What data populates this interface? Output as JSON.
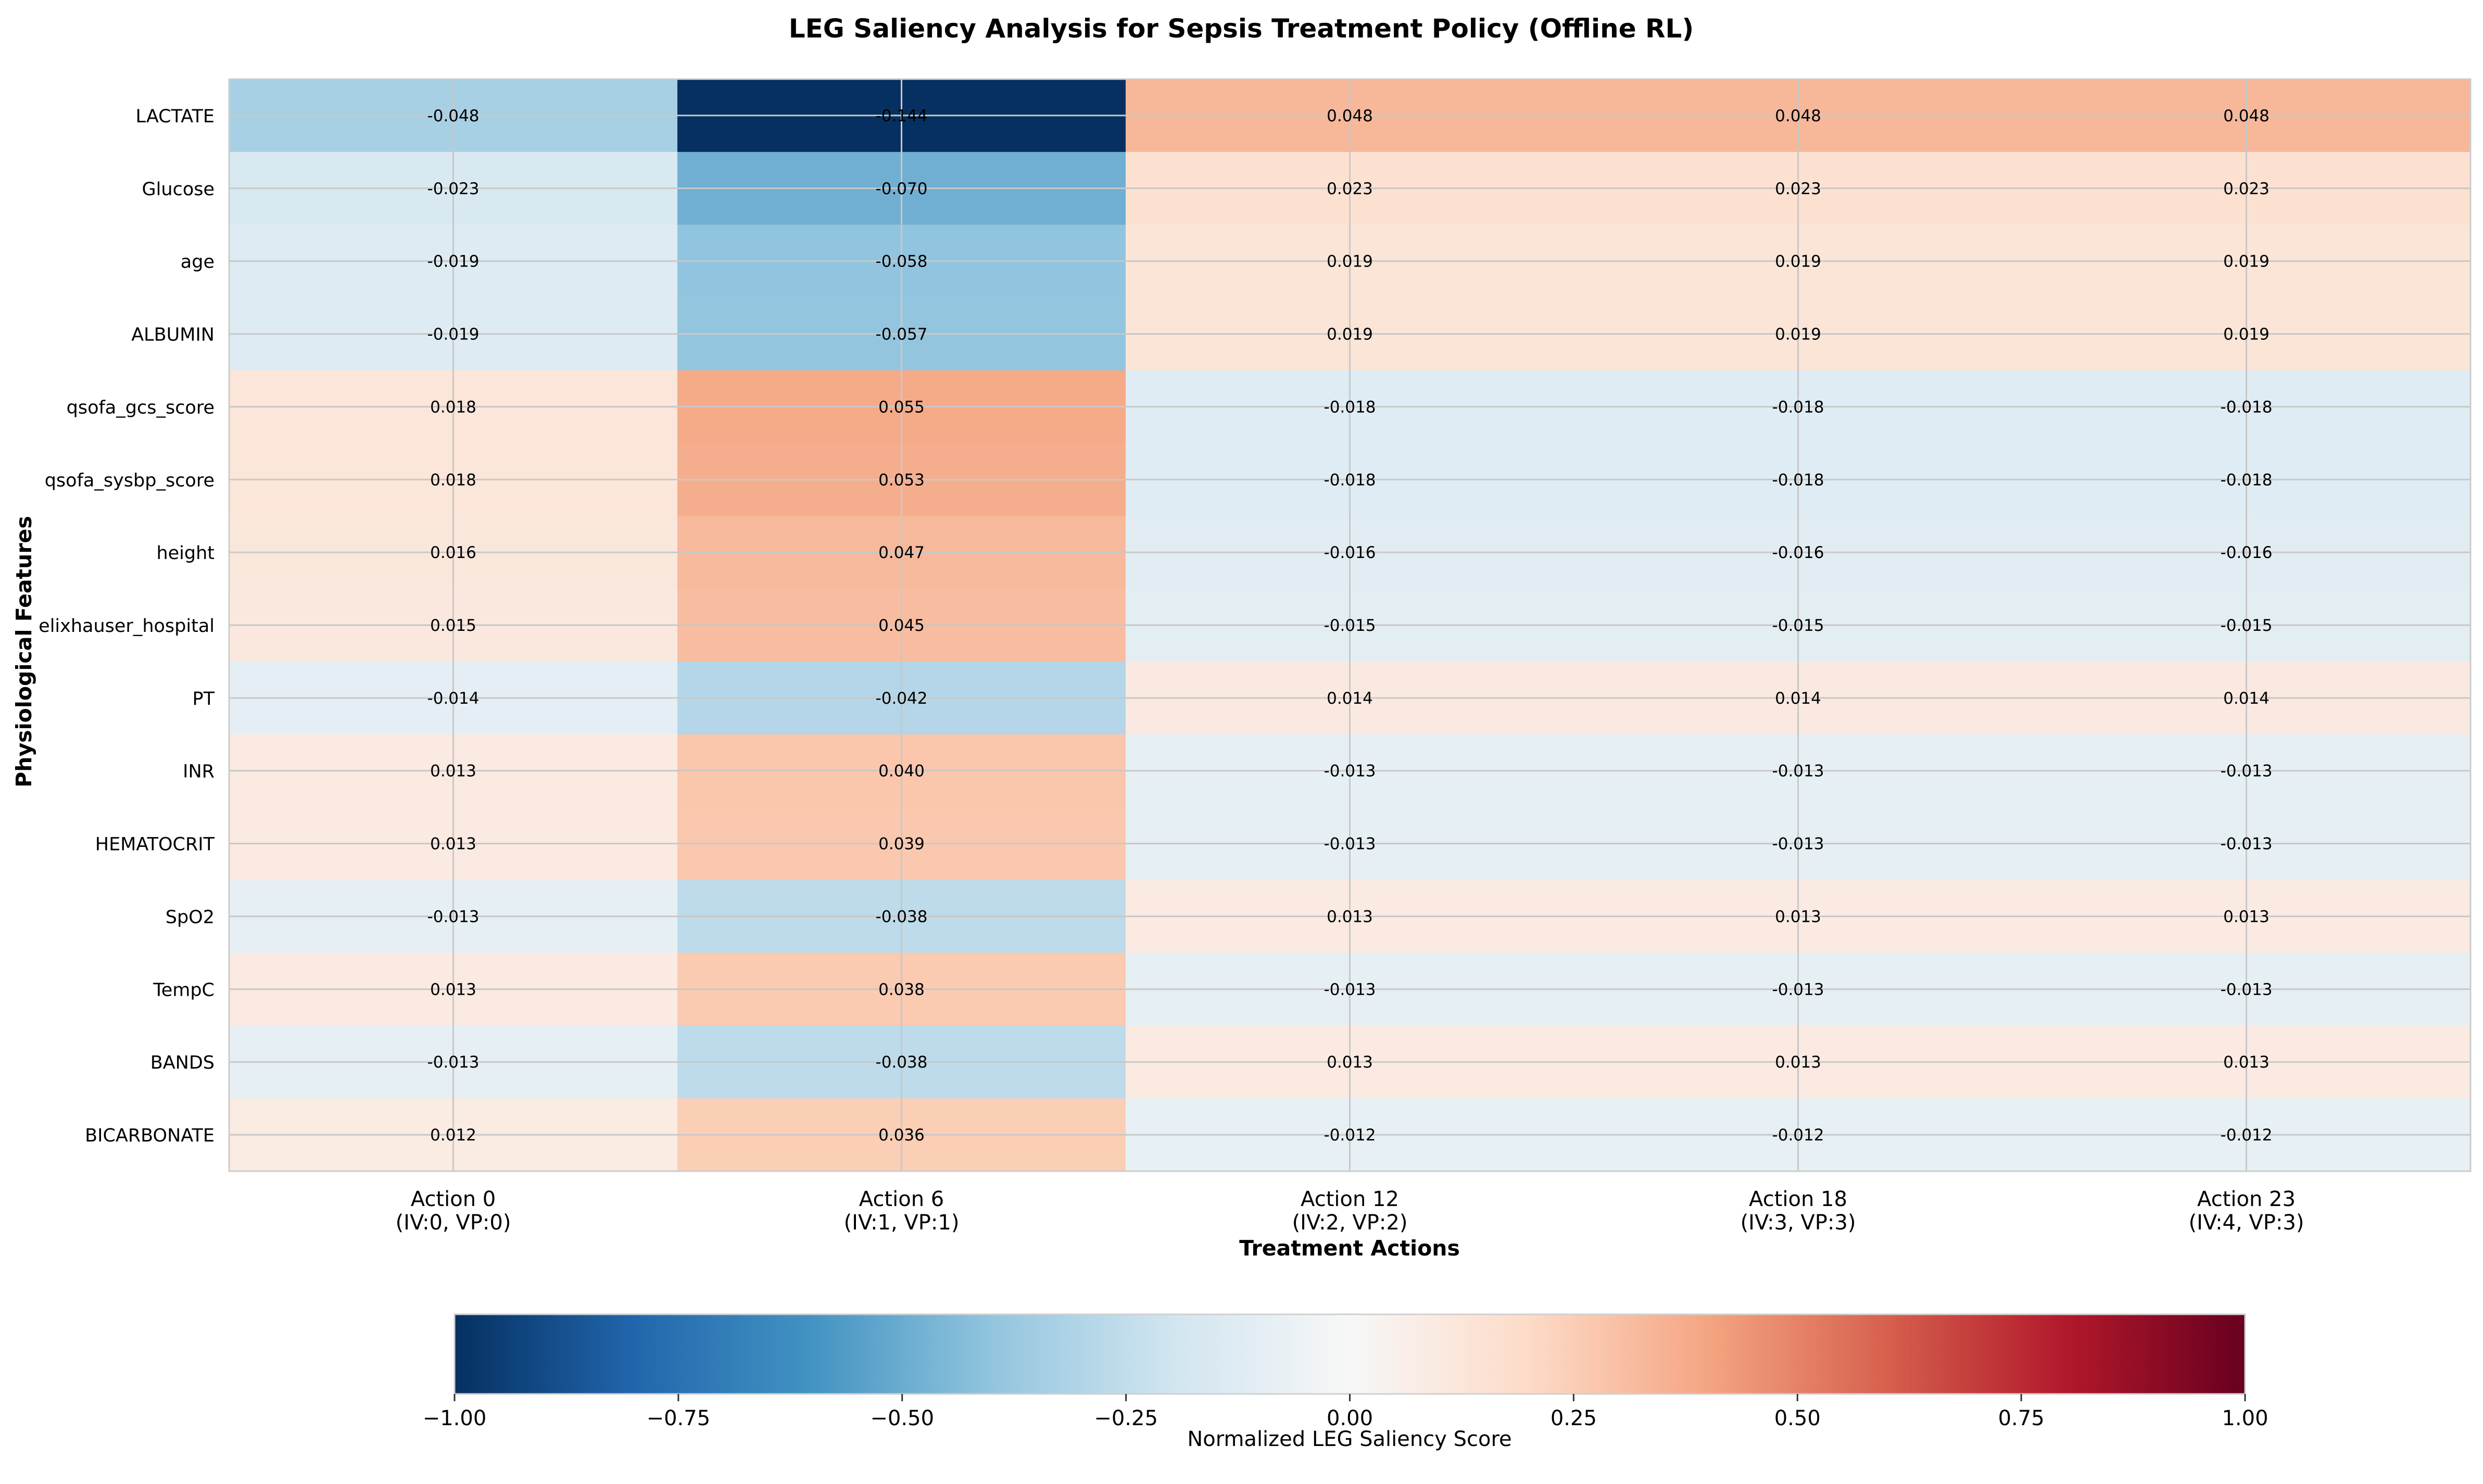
{
  "chart_data": {
    "type": "heatmap",
    "title": "LEG Saliency Analysis for Sepsis Treatment Policy (Offline RL)",
    "xlabel": "Treatment Actions",
    "ylabel": "Physiological Features",
    "x_tick_labels": [
      [
        "Action 0",
        "(IV:0, VP:0)"
      ],
      [
        "Action 6",
        "(IV:1, VP:1)"
      ],
      [
        "Action 12",
        "(IV:2, VP:2)"
      ],
      [
        "Action 18",
        "(IV:3, VP:3)"
      ],
      [
        "Action 23",
        "(IV:4, VP:3)"
      ]
    ],
    "rows": [
      "LACTATE",
      "Glucose",
      "age",
      "ALBUMIN",
      "qsofa_gcs_score",
      "qsofa_sysbp_score",
      "height",
      "elixhauser_hospital",
      "PT",
      "INR",
      "HEMATOCRIT",
      "SpO2",
      "TempC",
      "BANDS",
      "BICARBONATE"
    ],
    "values": [
      [
        -0.048,
        -0.144,
        0.048,
        0.048,
        0.048
      ],
      [
        -0.023,
        -0.07,
        0.023,
        0.023,
        0.023
      ],
      [
        -0.019,
        -0.058,
        0.019,
        0.019,
        0.019
      ],
      [
        -0.019,
        -0.057,
        0.019,
        0.019,
        0.019
      ],
      [
        0.018,
        0.055,
        -0.018,
        -0.018,
        -0.018
      ],
      [
        0.018,
        0.053,
        -0.018,
        -0.018,
        -0.018
      ],
      [
        0.016,
        0.047,
        -0.016,
        -0.016,
        -0.016
      ],
      [
        0.015,
        0.045,
        -0.015,
        -0.015,
        -0.015
      ],
      [
        -0.014,
        -0.042,
        0.014,
        0.014,
        0.014
      ],
      [
        0.013,
        0.04,
        -0.013,
        -0.013,
        -0.013
      ],
      [
        0.013,
        0.039,
        -0.013,
        -0.013,
        -0.013
      ],
      [
        -0.013,
        -0.038,
        0.013,
        0.013,
        0.013
      ],
      [
        0.013,
        0.038,
        -0.013,
        -0.013,
        -0.013
      ],
      [
        -0.013,
        -0.038,
        0.013,
        0.013,
        0.013
      ],
      [
        0.012,
        0.036,
        -0.012,
        -0.012,
        -0.012
      ]
    ],
    "colormap": "RdBu_r",
    "color_range": [
      -0.144,
      0.144
    ],
    "colorbar": {
      "label": "Normalized LEG Saliency Score",
      "ticks": [
        -1.0,
        -0.75,
        -0.5,
        -0.25,
        0.0,
        0.25,
        0.5,
        0.75,
        1.0
      ],
      "tick_labels": [
        "−1.00",
        "−0.75",
        "−0.50",
        "−0.25",
        "0.00",
        "0.25",
        "0.50",
        "0.75",
        "1.00"
      ],
      "range": [
        -1,
        1
      ]
    },
    "grid": true
  }
}
